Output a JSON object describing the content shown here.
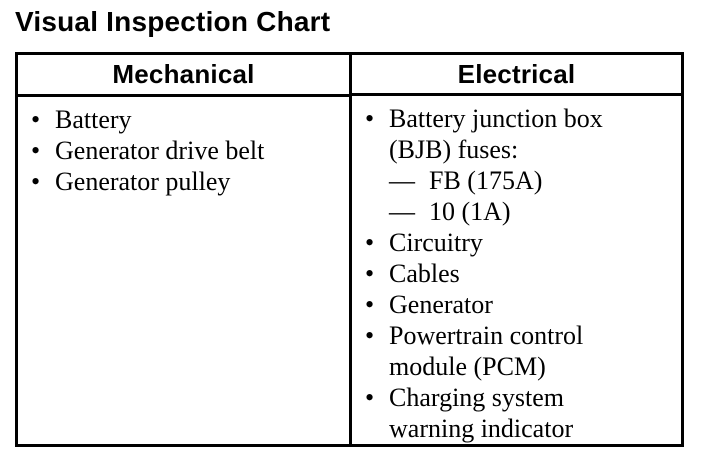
{
  "title": "Visual Inspection Chart",
  "markers": {
    "bullet": "•",
    "dash": "—"
  },
  "colors": {
    "ink": "#000000",
    "paper": "#ffffff"
  },
  "table": {
    "columns": [
      {
        "header": "Mechanical",
        "rows": [
          {
            "marker": "bullet",
            "lines": [
              "Battery"
            ]
          },
          {
            "marker": "bullet",
            "lines": [
              "Generator drive belt"
            ]
          },
          {
            "marker": "bullet",
            "lines": [
              "Generator pulley"
            ]
          }
        ]
      },
      {
        "header": "Electrical",
        "rows": [
          {
            "marker": "bullet",
            "lines": [
              "Battery junction box",
              "(BJB) fuses:"
            ]
          },
          {
            "marker": "dash",
            "lines": [
              "FB (175A)"
            ]
          },
          {
            "marker": "dash",
            "lines": [
              "10 (1A)"
            ]
          },
          {
            "marker": "bullet",
            "lines": [
              "Circuitry"
            ]
          },
          {
            "marker": "bullet",
            "lines": [
              "Cables"
            ]
          },
          {
            "marker": "bullet",
            "lines": [
              "Generator"
            ]
          },
          {
            "marker": "bullet",
            "lines": [
              "Powertrain control",
              "module (PCM)"
            ]
          },
          {
            "marker": "bullet",
            "lines": [
              "Charging system",
              "warning indicator"
            ]
          }
        ]
      }
    ]
  }
}
